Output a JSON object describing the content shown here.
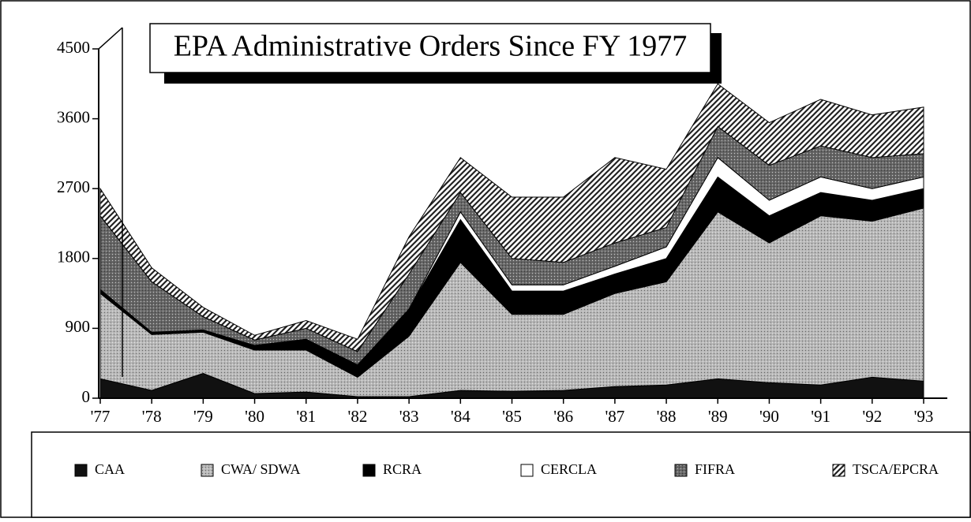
{
  "chart_data": {
    "type": "stacked_area",
    "title": "EPA Administrative Orders Since FY 1977",
    "categories": [
      "'77",
      "'78",
      "'79",
      "'80",
      "'81",
      "'82",
      "'83",
      "'84",
      "'85",
      "'86",
      "'87",
      "'88",
      "'89",
      "'90",
      "'91",
      "'92",
      "'93"
    ],
    "series": [
      {
        "name": "CAA",
        "color": "#111111",
        "pattern": "solid",
        "values": [
          250,
          100,
          320,
          60,
          80,
          20,
          20,
          100,
          90,
          100,
          150,
          170,
          250,
          200,
          170,
          270,
          220
        ]
      },
      {
        "name": "CWA/ SDWA",
        "color": "#b8b8b8",
        "pattern": "dots",
        "values": [
          1100,
          720,
          530,
          560,
          540,
          250,
          780,
          1650,
          990,
          980,
          1200,
          1330,
          2150,
          1800,
          2180,
          2010,
          2230
        ]
      },
      {
        "name": "RCRA",
        "color": "#000000",
        "pattern": "solid",
        "values": [
          50,
          30,
          30,
          60,
          140,
          160,
          350,
          550,
          300,
          300,
          250,
          300,
          450,
          350,
          300,
          270,
          250
        ]
      },
      {
        "name": "CERCLA",
        "color": "#ffffff",
        "pattern": "solid",
        "values": [
          0,
          0,
          0,
          0,
          0,
          0,
          0,
          100,
          80,
          80,
          100,
          150,
          250,
          200,
          200,
          150,
          150
        ]
      },
      {
        "name": "FIFRA",
        "color": "#666666",
        "pattern": "dots",
        "values": [
          950,
          650,
          170,
          70,
          140,
          170,
          450,
          250,
          340,
          290,
          300,
          250,
          400,
          450,
          400,
          400,
          300
        ]
      },
      {
        "name": "TSCA/EPCRA",
        "color": "#222222",
        "pattern": "hatch",
        "values": [
          350,
          180,
          120,
          60,
          100,
          160,
          480,
          450,
          790,
          840,
          1100,
          750,
          550,
          550,
          600,
          550,
          600
        ]
      }
    ],
    "ylim": [
      0,
      4500
    ],
    "yticks": [
      0,
      900,
      1800,
      2700,
      3600,
      4500
    ],
    "legend": "bottom"
  }
}
